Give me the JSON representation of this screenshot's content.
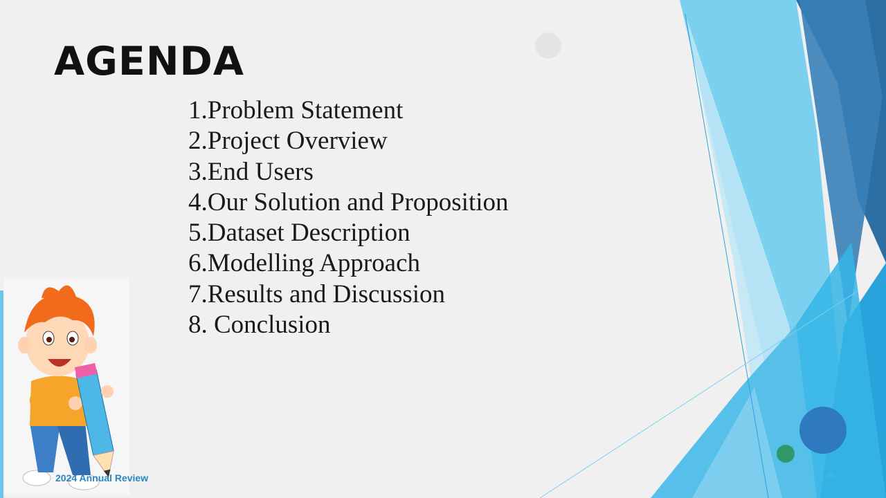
{
  "slide": {
    "title": "AGENDA",
    "agenda_items": [
      "1.Problem Statement",
      "2.Project Overview",
      "3.End Users",
      "4.Our Solution and Proposition",
      "5.Dataset Description",
      "6.Modelling Approach",
      "7.Results and Discussion",
      "8. Conclusion"
    ],
    "footer": "2024 Annual Review",
    "slide_number": "‹#›",
    "illustration": "boy-with-pencil-clipart"
  },
  "colors": {
    "background": "#f0f0f0",
    "accent_light": "#7bd0f0",
    "accent_mid": "#2fa5dc",
    "accent_dark": "#2e6fa3",
    "footer_text": "#2a86c4"
  }
}
